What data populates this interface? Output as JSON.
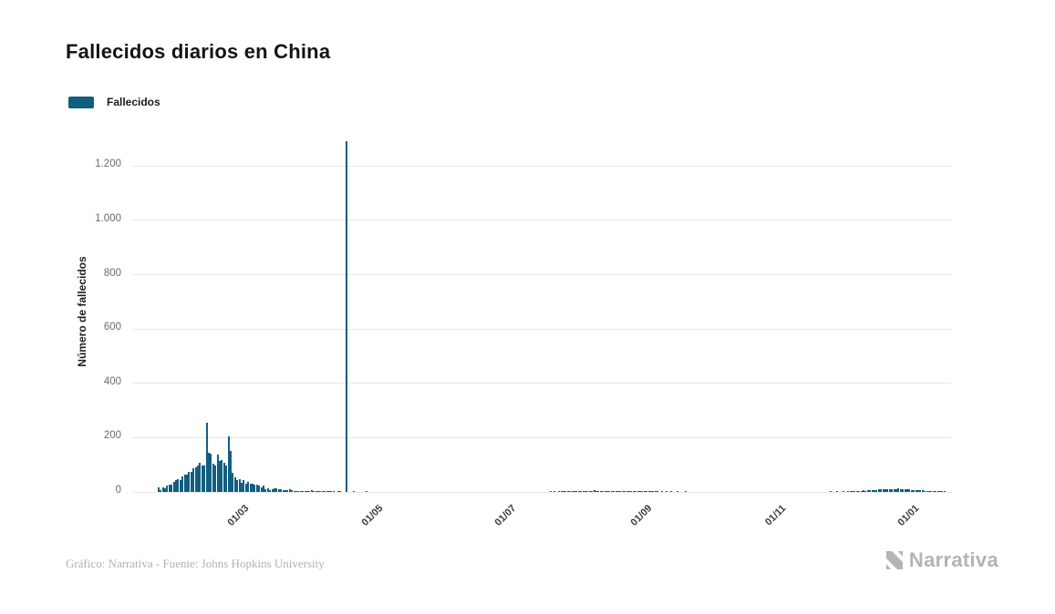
{
  "page": {
    "title": "Fallecidos diarios en China",
    "source": "Gráfico: Narrativa - Fuente: Johns Hopkins University",
    "brand": "Narrativa"
  },
  "legend": {
    "label": "Fallecidos"
  },
  "chart_data": {
    "type": "bar",
    "title": "Fallecidos diarios en China",
    "xlabel": "",
    "ylabel": "Número de fallecidos",
    "legend_entries": [
      "Fallecidos"
    ],
    "legend_position": "top-left",
    "grid": "horizontal",
    "bar_color": "#115e7e",
    "grid_color": "#e8e8e8",
    "ylim": [
      0,
      1325
    ],
    "y_ticks": [
      {
        "v": 0,
        "label": "0"
      },
      {
        "v": 200,
        "label": "200"
      },
      {
        "v": 400,
        "label": "400"
      },
      {
        "v": 600,
        "label": "600"
      },
      {
        "v": 800,
        "label": "800"
      },
      {
        "v": 1000,
        "label": "1.000"
      },
      {
        "v": 1200,
        "label": "1.200"
      }
    ],
    "x_domain": [
      "2020-01-10",
      "2021-01-18"
    ],
    "x_ticks": [
      {
        "date": "2020-03-01",
        "label": "01/03"
      },
      {
        "date": "2020-05-01",
        "label": "01/05"
      },
      {
        "date": "2020-07-01",
        "label": "01/07"
      },
      {
        "date": "2020-09-01",
        "label": "01/09"
      },
      {
        "date": "2020-11-01",
        "label": "01/11"
      },
      {
        "date": "2021-01-01",
        "label": "01/01"
      }
    ],
    "points": [
      [
        "2020-01-22",
        17
      ],
      [
        "2020-01-23",
        8
      ],
      [
        "2020-01-24",
        16
      ],
      [
        "2020-01-25",
        15
      ],
      [
        "2020-01-26",
        24
      ],
      [
        "2020-01-27",
        26
      ],
      [
        "2020-01-28",
        26
      ],
      [
        "2020-01-29",
        38
      ],
      [
        "2020-01-30",
        43
      ],
      [
        "2020-01-31",
        46
      ],
      [
        "2020-02-01",
        45
      ],
      [
        "2020-02-02",
        57
      ],
      [
        "2020-02-03",
        64
      ],
      [
        "2020-02-04",
        65
      ],
      [
        "2020-02-05",
        73
      ],
      [
        "2020-02-06",
        73
      ],
      [
        "2020-02-07",
        86
      ],
      [
        "2020-02-08",
        89
      ],
      [
        "2020-02-09",
        97
      ],
      [
        "2020-02-10",
        108
      ],
      [
        "2020-02-11",
        97
      ],
      [
        "2020-02-12",
        97
      ],
      [
        "2020-02-13",
        254
      ],
      [
        "2020-02-14",
        143
      ],
      [
        "2020-02-15",
        142
      ],
      [
        "2020-02-16",
        105
      ],
      [
        "2020-02-17",
        98
      ],
      [
        "2020-02-18",
        136
      ],
      [
        "2020-02-19",
        115
      ],
      [
        "2020-02-20",
        118
      ],
      [
        "2020-02-21",
        109
      ],
      [
        "2020-02-22",
        97
      ],
      [
        "2020-02-23",
        205
      ],
      [
        "2020-02-24",
        150
      ],
      [
        "2020-02-25",
        71
      ],
      [
        "2020-02-26",
        52
      ],
      [
        "2020-02-27",
        44
      ],
      [
        "2020-02-28",
        47
      ],
      [
        "2020-02-29",
        35
      ],
      [
        "2020-03-01",
        42
      ],
      [
        "2020-03-02",
        31
      ],
      [
        "2020-03-03",
        38
      ],
      [
        "2020-03-04",
        31
      ],
      [
        "2020-03-05",
        30
      ],
      [
        "2020-03-06",
        28
      ],
      [
        "2020-03-07",
        27
      ],
      [
        "2020-03-08",
        22
      ],
      [
        "2020-03-09",
        17
      ],
      [
        "2020-03-10",
        22
      ],
      [
        "2020-03-11",
        11
      ],
      [
        "2020-03-12",
        13
      ],
      [
        "2020-03-13",
        7
      ],
      [
        "2020-03-14",
        10
      ],
      [
        "2020-03-15",
        14
      ],
      [
        "2020-03-16",
        13
      ],
      [
        "2020-03-17",
        11
      ],
      [
        "2020-03-18",
        11
      ],
      [
        "2020-03-19",
        8
      ],
      [
        "2020-03-20",
        7
      ],
      [
        "2020-03-21",
        6
      ],
      [
        "2020-03-22",
        9
      ],
      [
        "2020-03-23",
        7
      ],
      [
        "2020-03-24",
        4
      ],
      [
        "2020-03-25",
        5
      ],
      [
        "2020-03-26",
        5
      ],
      [
        "2020-03-27",
        3
      ],
      [
        "2020-03-28",
        5
      ],
      [
        "2020-03-29",
        4
      ],
      [
        "2020-03-30",
        2
      ],
      [
        "2020-03-31",
        1
      ],
      [
        "2020-04-01",
        7
      ],
      [
        "2020-04-02",
        4
      ],
      [
        "2020-04-03",
        3
      ],
      [
        "2020-04-04",
        4
      ],
      [
        "2020-04-05",
        3
      ],
      [
        "2020-04-06",
        2
      ],
      [
        "2020-04-07",
        2
      ],
      [
        "2020-04-08",
        2
      ],
      [
        "2020-04-09",
        1
      ],
      [
        "2020-04-10",
        2
      ],
      [
        "2020-04-11",
        1
      ],
      [
        "2020-04-13",
        1
      ],
      [
        "2020-04-14",
        1
      ],
      [
        "2020-04-17",
        1290
      ],
      [
        "2020-04-20",
        1
      ],
      [
        "2020-04-26",
        1
      ],
      [
        "2020-07-19",
        1
      ],
      [
        "2020-07-21",
        1
      ],
      [
        "2020-07-23",
        2
      ],
      [
        "2020-07-24",
        1
      ],
      [
        "2020-07-25",
        2
      ],
      [
        "2020-07-26",
        2
      ],
      [
        "2020-07-27",
        1
      ],
      [
        "2020-07-28",
        2
      ],
      [
        "2020-07-29",
        3
      ],
      [
        "2020-07-30",
        3
      ],
      [
        "2020-07-31",
        4
      ],
      [
        "2020-08-01",
        3
      ],
      [
        "2020-08-02",
        4
      ],
      [
        "2020-08-03",
        4
      ],
      [
        "2020-08-04",
        5
      ],
      [
        "2020-08-05",
        5
      ],
      [
        "2020-08-06",
        4
      ],
      [
        "2020-08-07",
        5
      ],
      [
        "2020-08-08",
        6
      ],
      [
        "2020-08-09",
        5
      ],
      [
        "2020-08-10",
        4
      ],
      [
        "2020-08-11",
        5
      ],
      [
        "2020-08-12",
        4
      ],
      [
        "2020-08-13",
        5
      ],
      [
        "2020-08-14",
        4
      ],
      [
        "2020-08-15",
        3
      ],
      [
        "2020-08-16",
        4
      ],
      [
        "2020-08-17",
        3
      ],
      [
        "2020-08-18",
        5
      ],
      [
        "2020-08-19",
        4
      ],
      [
        "2020-08-20",
        3
      ],
      [
        "2020-08-21",
        3
      ],
      [
        "2020-08-22",
        3
      ],
      [
        "2020-08-23",
        2
      ],
      [
        "2020-08-24",
        3
      ],
      [
        "2020-08-25",
        2
      ],
      [
        "2020-08-26",
        2
      ],
      [
        "2020-08-27",
        2
      ],
      [
        "2020-08-28",
        2
      ],
      [
        "2020-08-29",
        2
      ],
      [
        "2020-08-30",
        1
      ],
      [
        "2020-08-31",
        2
      ],
      [
        "2020-09-01",
        1
      ],
      [
        "2020-09-02",
        2
      ],
      [
        "2020-09-03",
        1
      ],
      [
        "2020-09-04",
        1
      ],
      [
        "2020-09-05",
        2
      ],
      [
        "2020-09-06",
        1
      ],
      [
        "2020-09-08",
        1
      ],
      [
        "2020-09-10",
        1
      ],
      [
        "2020-09-12",
        1
      ],
      [
        "2020-09-15",
        1
      ],
      [
        "2020-09-19",
        1
      ],
      [
        "2020-11-24",
        1
      ],
      [
        "2020-11-27",
        1
      ],
      [
        "2020-11-30",
        2
      ],
      [
        "2020-12-02",
        2
      ],
      [
        "2020-12-03",
        1
      ],
      [
        "2020-12-04",
        2
      ],
      [
        "2020-12-05",
        3
      ],
      [
        "2020-12-06",
        3
      ],
      [
        "2020-12-07",
        4
      ],
      [
        "2020-12-08",
        5
      ],
      [
        "2020-12-09",
        6
      ],
      [
        "2020-12-10",
        5
      ],
      [
        "2020-12-11",
        6
      ],
      [
        "2020-12-12",
        7
      ],
      [
        "2020-12-13",
        8
      ],
      [
        "2020-12-14",
        7
      ],
      [
        "2020-12-15",
        8
      ],
      [
        "2020-12-16",
        9
      ],
      [
        "2020-12-17",
        10
      ],
      [
        "2020-12-18",
        9
      ],
      [
        "2020-12-19",
        10
      ],
      [
        "2020-12-20",
        11
      ],
      [
        "2020-12-21",
        10
      ],
      [
        "2020-12-22",
        9
      ],
      [
        "2020-12-23",
        10
      ],
      [
        "2020-12-24",
        9
      ],
      [
        "2020-12-25",
        12
      ],
      [
        "2020-12-26",
        10
      ],
      [
        "2020-12-27",
        9
      ],
      [
        "2020-12-28",
        10
      ],
      [
        "2020-12-29",
        11
      ],
      [
        "2020-12-30",
        9
      ],
      [
        "2020-12-31",
        8
      ],
      [
        "2021-01-01",
        7
      ],
      [
        "2021-01-02",
        8
      ],
      [
        "2021-01-03",
        6
      ],
      [
        "2021-01-04",
        7
      ],
      [
        "2021-01-05",
        6
      ],
      [
        "2021-01-06",
        5
      ],
      [
        "2021-01-07",
        5
      ],
      [
        "2021-01-08",
        4
      ],
      [
        "2021-01-09",
        4
      ],
      [
        "2021-01-10",
        3
      ],
      [
        "2021-01-11",
        3
      ],
      [
        "2021-01-12",
        2
      ],
      [
        "2021-01-13",
        2
      ],
      [
        "2021-01-14",
        1
      ],
      [
        "2021-01-15",
        1
      ]
    ]
  }
}
